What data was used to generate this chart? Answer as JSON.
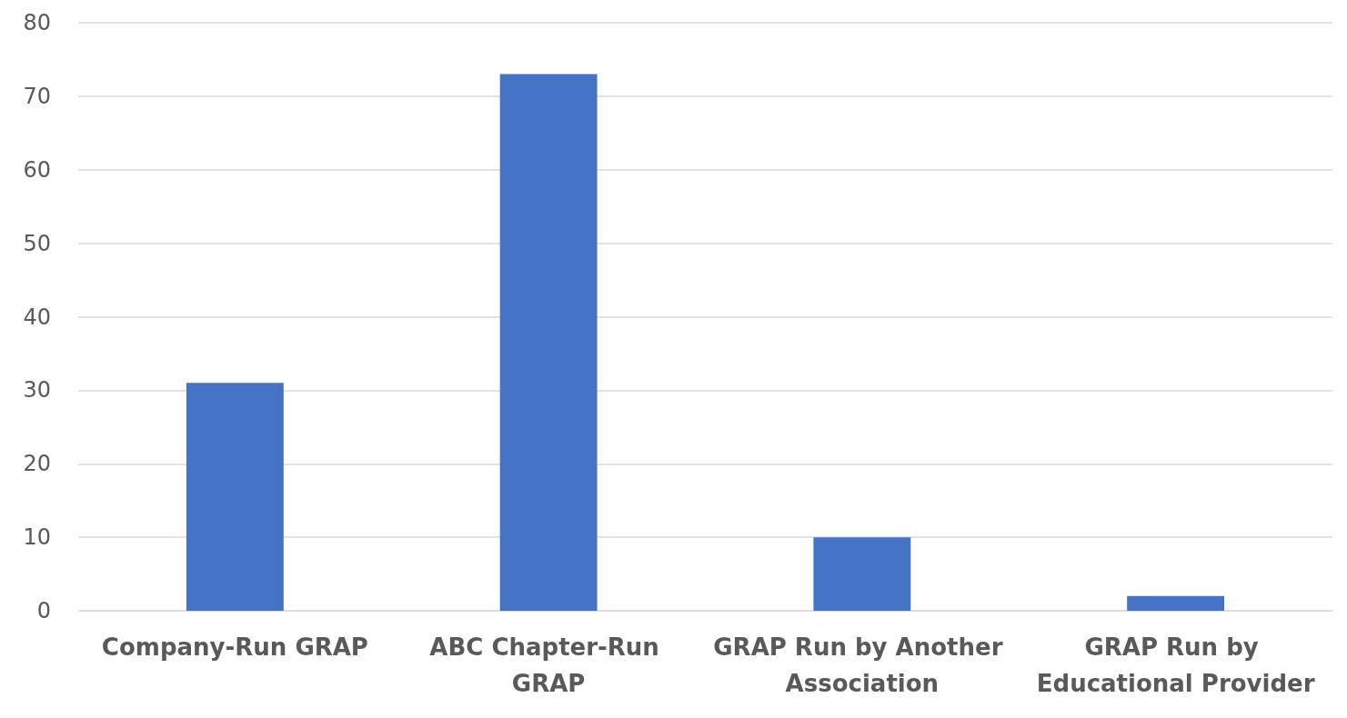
{
  "chart_data": {
    "type": "bar",
    "categories": [
      "Company-Run GRAP",
      "ABC Chapter-Run GRAP",
      "GRAP Run by Another Association",
      "GRAP Run by Educational Provider"
    ],
    "values": [
      31,
      73,
      10,
      2
    ],
    "color": "#4472c4",
    "ylim": [
      0,
      80
    ],
    "yticks": [
      0,
      10,
      20,
      30,
      40,
      50,
      60,
      70,
      80
    ],
    "grid": "y"
  }
}
